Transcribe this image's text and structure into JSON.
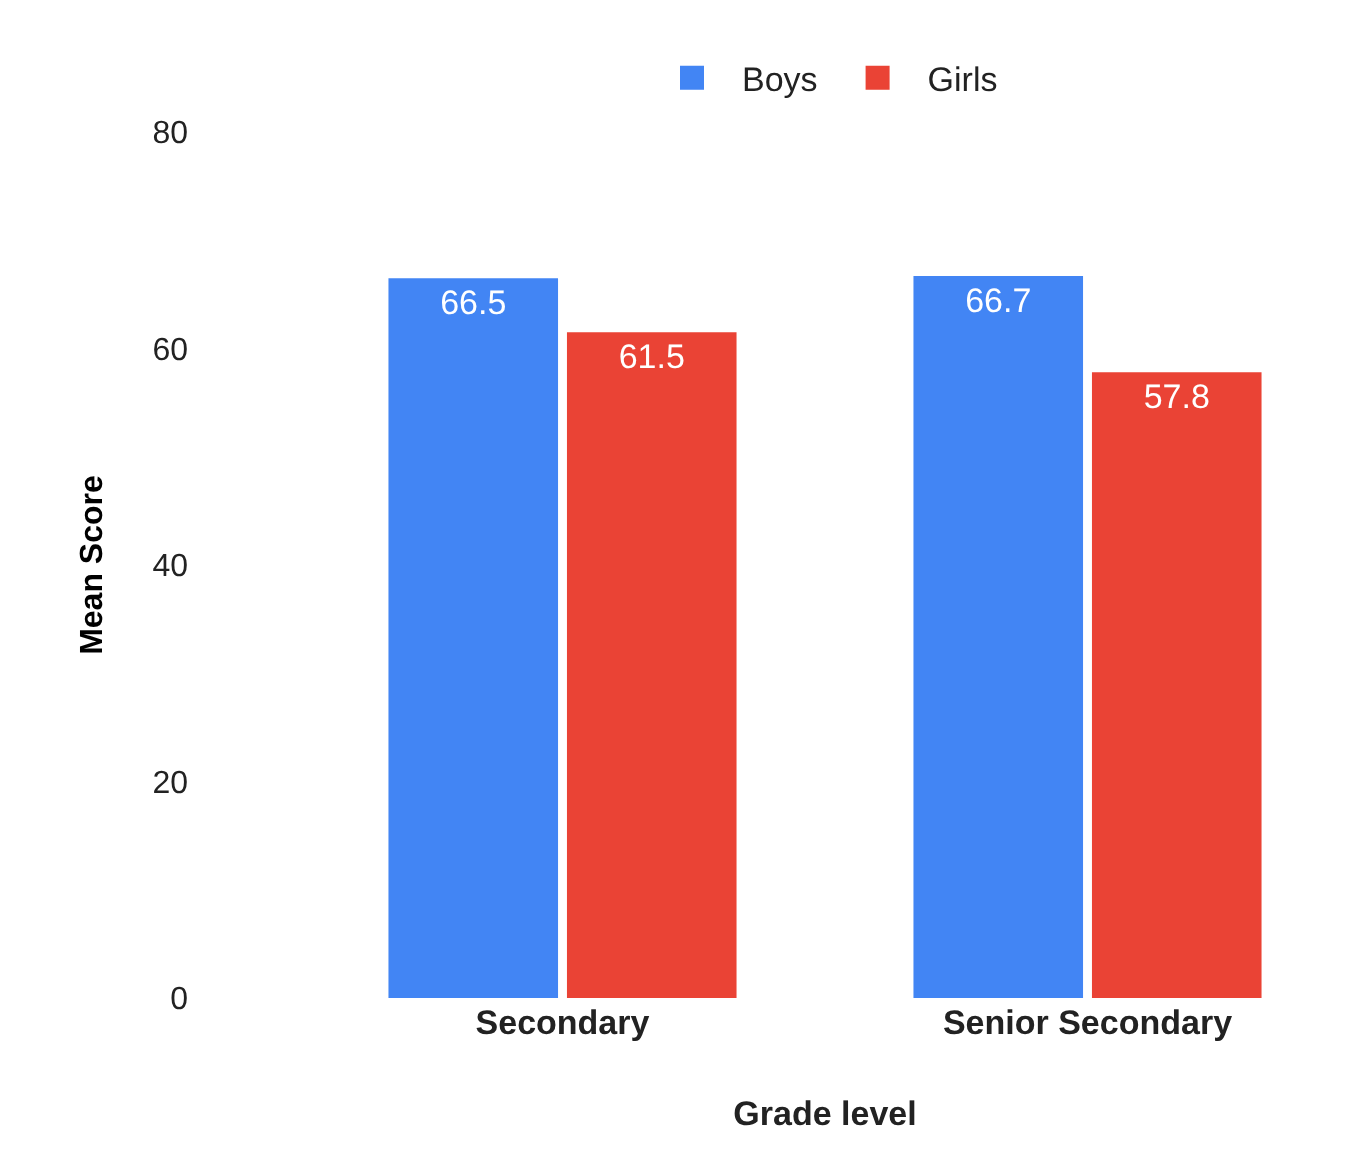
{
  "chart_data": {
    "type": "bar",
    "xlabel": "Grade level",
    "ylabel": "Mean Score",
    "categories": [
      "Secondary",
      "Senior Secondary"
    ],
    "series": [
      {
        "name": "Boys",
        "color": "#4285f4",
        "values": [
          66.5,
          66.7
        ]
      },
      {
        "name": "Girls",
        "color": "#ea4335",
        "values": [
          61.5,
          57.8
        ]
      }
    ],
    "ylim": [
      0,
      80
    ],
    "yticks": [
      0,
      20,
      40,
      60,
      80
    ],
    "grid": false,
    "legend": "top",
    "data_labels": true
  }
}
